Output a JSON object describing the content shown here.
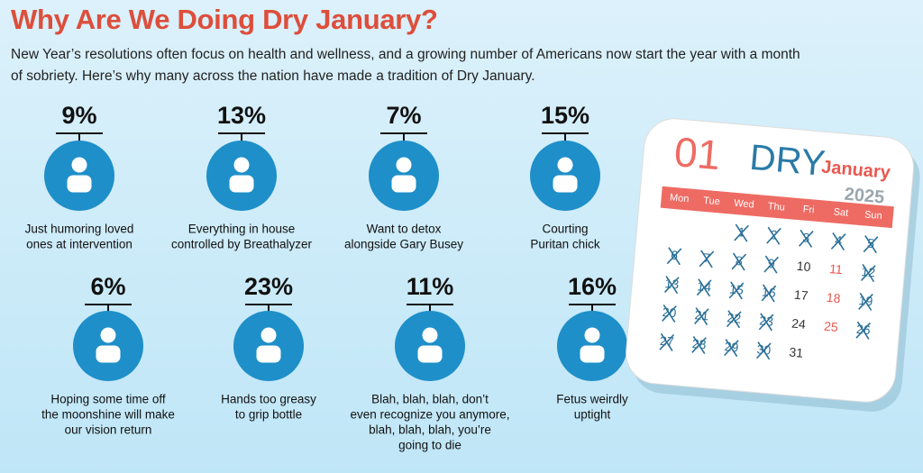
{
  "header": {
    "title": "Why Are We Doing Dry January?",
    "subtitle": [
      "New Year’s resolutions often focus on health and wellness, and a growing number of Americans now start the year with a month",
      "of sobriety. Here’s why many across the nation have made a tradition of Dry January."
    ]
  },
  "items": [
    {
      "percent": "9%",
      "caption": [
        "Just humoring loved",
        "ones at intervention"
      ]
    },
    {
      "percent": "13%",
      "caption": [
        "Everything in house",
        "controlled by Breathalyzer"
      ]
    },
    {
      "percent": "7%",
      "caption": [
        "Want to detox",
        "alongside Gary Busey"
      ]
    },
    {
      "percent": "15%",
      "caption": [
        "Courting",
        "Puritan chick"
      ]
    },
    {
      "percent": "6%",
      "caption": [
        "Hoping some time off",
        "the moonshine will make",
        "our vision return"
      ]
    },
    {
      "percent": "23%",
      "caption": [
        "Hands too greasy",
        "to grip bottle"
      ]
    },
    {
      "percent": "11%",
      "caption": [
        "Blah, blah, blah, don’t",
        "even recognize you anymore,",
        "blah, blah, blah, you’re",
        "going to die"
      ]
    },
    {
      "percent": "16%",
      "caption": [
        "Fetus weirdly",
        "uptight"
      ]
    }
  ],
  "calendar": {
    "number": "01",
    "word": "DRY",
    "month": "January",
    "year": "2025",
    "weekdays": [
      "Mon",
      "Tue",
      "Wed",
      "Thu",
      "Fri",
      "Sat",
      "Sun"
    ],
    "days": [
      {
        "day": 1,
        "crossed": true
      },
      {
        "day": 2,
        "crossed": true
      },
      {
        "day": 3,
        "crossed": true
      },
      {
        "day": 4,
        "crossed": true
      },
      {
        "day": 5,
        "crossed": true
      },
      {
        "day": 6,
        "crossed": true
      },
      {
        "day": 7,
        "crossed": true
      },
      {
        "day": 8,
        "crossed": true
      },
      {
        "day": 9,
        "crossed": true
      },
      {
        "day": 10,
        "crossed": false
      },
      {
        "day": 11,
        "crossed": false
      },
      {
        "day": 12,
        "crossed": true
      },
      {
        "day": 13,
        "crossed": true
      },
      {
        "day": 14,
        "crossed": true
      },
      {
        "day": 15,
        "crossed": true
      },
      {
        "day": 16,
        "crossed": true
      },
      {
        "day": 17,
        "crossed": false
      },
      {
        "day": 18,
        "crossed": false
      },
      {
        "day": 19,
        "crossed": true
      },
      {
        "day": 20,
        "crossed": true
      },
      {
        "day": 21,
        "crossed": true
      },
      {
        "day": 22,
        "crossed": true
      },
      {
        "day": 23,
        "crossed": true
      },
      {
        "day": 24,
        "crossed": false
      },
      {
        "day": 25,
        "crossed": false
      },
      {
        "day": 26,
        "crossed": true
      },
      {
        "day": 27,
        "crossed": true
      },
      {
        "day": 28,
        "crossed": true
      },
      {
        "day": 29,
        "crossed": true
      },
      {
        "day": 30,
        "crossed": true
      },
      {
        "day": 31,
        "crossed": false
      }
    ]
  }
}
